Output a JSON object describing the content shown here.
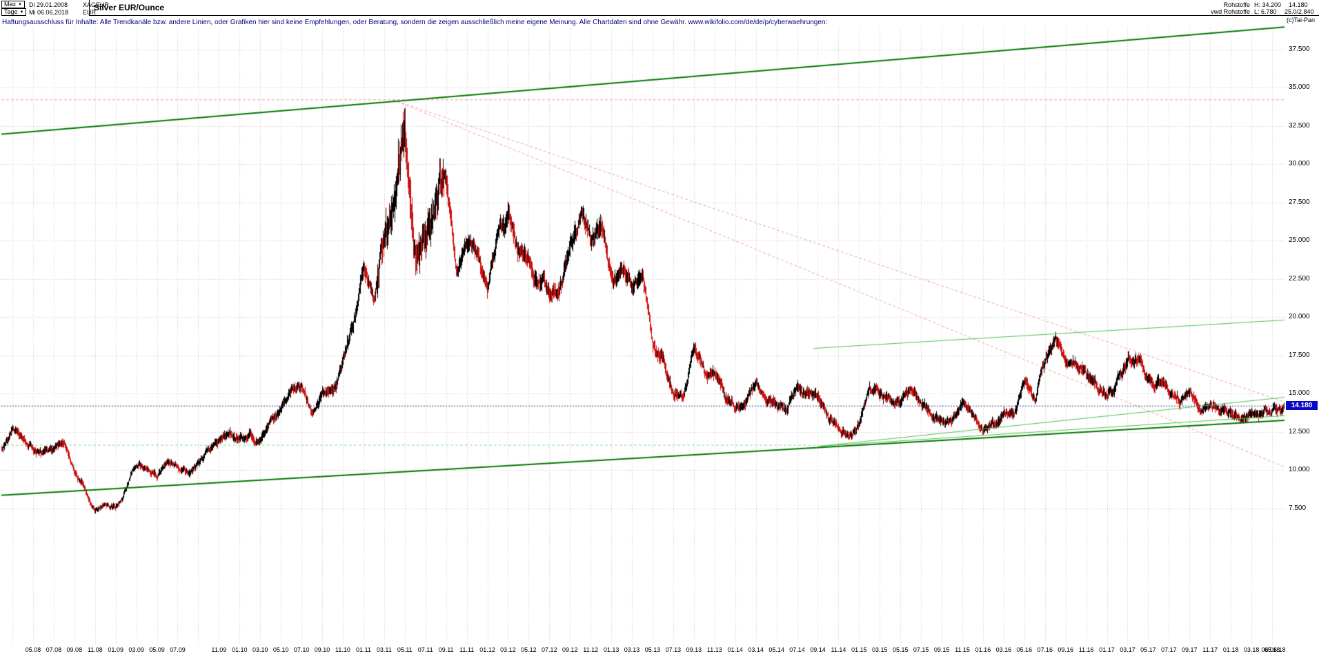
{
  "header": {
    "range_dropdown": "Max",
    "start_date": "Di 29.01.2008",
    "symbol": "XAGEUR",
    "period_dropdown": "Tage",
    "end_date": "Mi 06.06.2018",
    "currency": "EUR",
    "title": "Silver EUR/Ounce",
    "right": {
      "category": "Rohstoffe",
      "provider": "vwd Rohstoffe",
      "high_label": "H: 34.200",
      "low_label": "L: 6.780",
      "last_value": "14.180",
      "extra": "25.0/2.840",
      "copyright": "(c)Tai-Pan"
    }
  },
  "disclaimer": "Haftungsausschluss für Inhalte: Alle Trendkanäle bzw. andere Linien, oder Grafiken hier sind keine Empfehlungen, oder Beratung, sondern die zeigen ausschließlich meine eigene Meinung. Alle Chartdaten sind ohne Gewähr.  www.wikifolio.com/de/de/p/cyberwaehrungen:",
  "colors": {
    "up_bar": "#000000",
    "down_bar": "#cc1111",
    "grid": "#c6c6c6",
    "channel_green": "#007700",
    "minor_green": "#4fbf4f",
    "dashed_green": "#8fdf8f",
    "dashed_red": "#f49c9c",
    "current_line": "#3a3a8c",
    "price_tag_bg": "#0909c4",
    "price_tag_text": "#ffffff",
    "disclaimer_text": "#000080"
  },
  "chart_data": {
    "type": "line",
    "render_style": "daily-ohlc-bars",
    "title": "Silver EUR/Ounce",
    "instrument": "XAGEUR",
    "currency": "EUR",
    "period_start": "29.01.2008",
    "period_end": "06.06.2018",
    "high": 34.2,
    "low": 6.78,
    "last": 14.18,
    "last_label": "14.180",
    "axis": {
      "y_top_price": 39.55,
      "y_bottom_price": -1.44,
      "start_month_offset": 0.93,
      "total_months": 124.27,
      "grid": true,
      "y_axis_side": "right"
    },
    "y_axis": {
      "values": [
        37.5,
        35,
        32.5,
        30,
        27.5,
        25,
        22.5,
        20,
        17.5,
        15,
        12.5,
        10,
        7.5
      ],
      "labels": [
        "37.500",
        "35.000",
        "32.500",
        "30.000",
        "27.500",
        "25.000",
        "22.500",
        "20.000",
        "17.500",
        "15.000",
        "12.500",
        "10.000",
        "7.500"
      ]
    },
    "x_axis": {
      "labels": [
        "05.08",
        "07.08",
        "09.08",
        "11.08",
        "01.09",
        "03.09",
        "05.09",
        "07.09",
        "11.09",
        "01.10",
        "03.10",
        "05.10",
        "07.10",
        "09.10",
        "11.10",
        "01.11",
        "03.11",
        "05.11",
        "07.11",
        "09.11",
        "11.11",
        "01.12",
        "03.12",
        "05.12",
        "07.12",
        "09.12",
        "11.12",
        "01.13",
        "03.13",
        "05.13",
        "07.13",
        "09.13",
        "11.13",
        "01.14",
        "03.14",
        "05.14",
        "07.14",
        "09.14",
        "11.14",
        "01.15",
        "03.15",
        "05.15",
        "07.15",
        "09.15",
        "11.15",
        "01.16",
        "03.16",
        "05.16",
        "07.16",
        "09.16",
        "11.16",
        "01.17",
        "03.17",
        "05.17",
        "07.17",
        "09.17",
        "11.17",
        "01.18",
        "03.18",
        "05.18",
        "06.06.18"
      ]
    },
    "series": {
      "name": "XAGEUR monthly close (EUR/Ounce)",
      "start_month": "2008-01",
      "monthly_close": [
        11.4,
        12.6,
        11.7,
        10.9,
        11.1,
        11.3,
        11.7,
        9.7,
        8.7,
        7.3,
        7.9,
        7.6,
        8.9,
        10.2,
        9.9,
        9.5,
        10.5,
        10.0,
        9.7,
        10.2,
        11.1,
        11.6,
        12.3,
        11.9,
        12.4,
        11.9,
        12.9,
        13.8,
        15.2,
        15.4,
        13.9,
        14.9,
        16.1,
        17.4,
        20.2,
        23.1,
        20.8,
        24.6,
        26.7,
        33.9,
        26.3,
        24.6,
        27.7,
        28.8,
        22.9,
        24.4,
        23.9,
        21.5,
        25.3,
        26.7,
        24.3,
        23.7,
        22.6,
        21.9,
        22.4,
        24.9,
        26.9,
        24.8,
        26.1,
        22.9,
        23.4,
        21.9,
        22.4,
        18.4,
        17.3,
        14.9,
        15.1,
        17.9,
        16.1,
        16.2,
        14.7,
        14.1,
        14.6,
        15.6,
        14.4,
        14.1,
        13.9,
        15.5,
        15.3,
        14.9,
        13.6,
        12.9,
        12.3,
        13.0,
        15.3,
        14.9,
        14.6,
        14.5,
        15.4,
        14.1,
        13.3,
        13.1,
        13.0,
        14.2,
        13.4,
        12.7,
        13.1,
        13.7,
        13.6,
        15.8,
        14.4,
        16.9,
        18.4,
        16.9,
        17.2,
        16.2,
        15.6,
        15.2,
        16.0,
        17.1,
        17.0,
        15.9,
        15.5,
        14.7,
        14.4,
        14.8,
        14.2,
        14.5,
        13.9,
        14.2,
        14.0,
        13.6,
        13.4,
        13.8,
        14.1,
        14.18
      ]
    },
    "annotations": [
      {
        "name": "upper-channel-line",
        "x1": 0,
        "p1": 31.95,
        "x2": 1,
        "p2": 38.95,
        "color": "channel_green",
        "width": 2,
        "dash": null
      },
      {
        "name": "lower-channel-line",
        "x1": 0,
        "p1": 8.35,
        "x2": 1,
        "p2": 13.25,
        "color": "channel_green",
        "width": 2,
        "dash": null
      },
      {
        "name": "mini-channel-upper-line",
        "x1": 0.633,
        "p1": 17.95,
        "x2": 1,
        "p2": 19.8,
        "color": "minor_green",
        "width": 1,
        "dash": null
      },
      {
        "name": "support-line-1",
        "x1": 0.637,
        "p1": 11.55,
        "x2": 1,
        "p2": 14.75,
        "color": "minor_green",
        "width": 1,
        "dash": null
      },
      {
        "name": "support-line-2",
        "x1": 0.637,
        "p1": 11.55,
        "x2": 1,
        "p2": 13.55,
        "color": "minor_green",
        "width": 1,
        "dash": null
      },
      {
        "name": "high-horizontal-line",
        "x1": 0,
        "p1": 34.2,
        "x2": 1,
        "p2": 34.2,
        "color": "dashed_red",
        "width": 1,
        "dash": [
          4,
          3
        ]
      },
      {
        "name": "fan-line-1",
        "x1": 0.3049,
        "p1": 34.2,
        "x2": 1,
        "p2": 14.45,
        "color": "dashed_red",
        "width": 1,
        "dash": [
          4,
          3
        ]
      },
      {
        "name": "fan-line-2",
        "x1": 0.3049,
        "p1": 34.2,
        "x2": 1,
        "p2": 10.2,
        "color": "dashed_red",
        "width": 1,
        "dash": [
          4,
          3
        ]
      },
      {
        "name": "support-horizontal-line",
        "x1": 0,
        "p1": 11.62,
        "x2": 0.637,
        "p2": 11.62,
        "color": "dashed_green",
        "width": 1,
        "dash": [
          4,
          3
        ]
      },
      {
        "name": "last-price-line",
        "x1": 0,
        "p1": 14.18,
        "x2": 1,
        "p2": 14.18,
        "color": "current_line",
        "width": 1,
        "dash": [
          2,
          2
        ]
      }
    ]
  }
}
